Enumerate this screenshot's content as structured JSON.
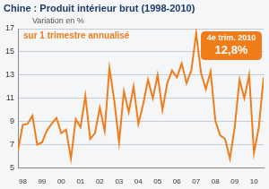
{
  "chart_data": {
    "type": "line",
    "title": "Chine : Produit intérieur brut (1998-2010)",
    "subtitle": "Variation en %",
    "categories": [
      null,
      "98",
      null,
      null,
      null,
      "99",
      null,
      null,
      null,
      "00",
      null,
      null,
      null,
      "01",
      null,
      null,
      null,
      "02",
      null,
      null,
      null,
      "03",
      null,
      null,
      null,
      "04",
      null,
      null,
      null,
      "05",
      null,
      null,
      null,
      "06",
      null,
      null,
      null,
      "07",
      null,
      null,
      null,
      "08",
      null,
      null,
      null,
      "09",
      null,
      null,
      null,
      "10",
      null,
      null
    ],
    "series": [
      {
        "name": "sur 1 trimestre annualisé",
        "color": "#f07d1a",
        "values": [
          6.5,
          8.7,
          8.8,
          9.5,
          7.0,
          7.2,
          8.2,
          8.8,
          9.3,
          8.0,
          8.3,
          5.8,
          9.2,
          8.5,
          11.2,
          7.5,
          8.0,
          10.2,
          8.2,
          13.6,
          10.8,
          7.2,
          11.6,
          9.8,
          12.0,
          8.8,
          10.5,
          12.6,
          11.0,
          13.0,
          10.0,
          12.3,
          13.4,
          12.8,
          14.0,
          12.3,
          13.4,
          16.6,
          13.2,
          11.8,
          13.3,
          9.0,
          7.8,
          7.5,
          5.8,
          8.5,
          12.6,
          11.0,
          13.0,
          6.3,
          8.5,
          12.8
        ]
      }
    ],
    "ylim": [
      5,
      17
    ],
    "yticks": [
      5,
      7,
      9,
      11,
      13,
      15,
      17
    ],
    "grid": true,
    "legend": "upper left",
    "annotation": {
      "text": "4e trim. 2010",
      "value_text": "12,8%",
      "color": "#f07d1a"
    }
  }
}
